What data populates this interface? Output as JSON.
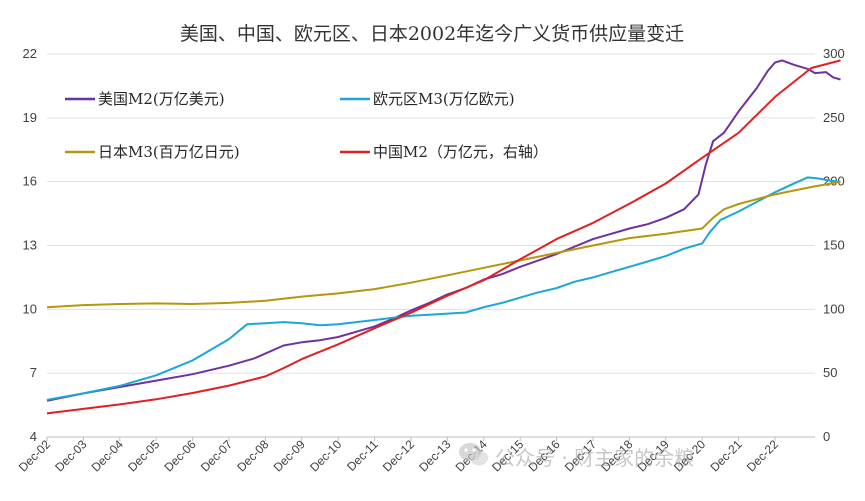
{
  "chart_data": {
    "type": "line",
    "title": "美国、中国、欧元区、日本2002年迄今广义货币供应量变迁",
    "x_labels": [
      "Dec-02",
      "Dec-03",
      "Dec-04",
      "Dec-05",
      "Dec-06",
      "Dec-07",
      "Dec-08",
      "Dec-09",
      "Dec-10",
      "Dec-11",
      "Dec-12",
      "Dec-13",
      "Dec-14",
      "Dec-15",
      "Dec-16",
      "Dec-17",
      "Dec-18",
      "Dec-19",
      "Dec-20",
      "Dec-21",
      "Dec-22"
    ],
    "x_range": [
      2002,
      2023.1
    ],
    "y_left": {
      "range": [
        4,
        22
      ],
      "ticks": [
        "4",
        "7",
        "10",
        "13",
        "16",
        "19",
        "22"
      ]
    },
    "y_right": {
      "range": [
        0,
        300
      ],
      "ticks": [
        "0",
        "50",
        "100",
        "150",
        "200",
        "250",
        "300"
      ]
    },
    "grid": "horizontal",
    "legend": "top-left",
    "series": [
      {
        "name": "美国M2(万亿美元)",
        "color": "#7030a0",
        "axis": "left",
        "points": [
          [
            2002.0,
            5.7
          ],
          [
            2003.0,
            6.05
          ],
          [
            2004.0,
            6.35
          ],
          [
            2005.0,
            6.65
          ],
          [
            2006.0,
            6.95
          ],
          [
            2007.0,
            7.35
          ],
          [
            2007.7,
            7.7
          ],
          [
            2008.5,
            8.3
          ],
          [
            2009.0,
            8.45
          ],
          [
            2009.5,
            8.55
          ],
          [
            2010.0,
            8.7
          ],
          [
            2010.5,
            8.95
          ],
          [
            2011.0,
            9.2
          ],
          [
            2011.5,
            9.55
          ],
          [
            2012.0,
            9.95
          ],
          [
            2012.5,
            10.3
          ],
          [
            2013.0,
            10.7
          ],
          [
            2013.5,
            11.0
          ],
          [
            2014.0,
            11.4
          ],
          [
            2014.5,
            11.65
          ],
          [
            2015.0,
            12.0
          ],
          [
            2015.5,
            12.3
          ],
          [
            2016.0,
            12.6
          ],
          [
            2016.5,
            12.95
          ],
          [
            2017.0,
            13.3
          ],
          [
            2017.5,
            13.55
          ],
          [
            2018.0,
            13.8
          ],
          [
            2018.5,
            14.0
          ],
          [
            2019.0,
            14.3
          ],
          [
            2019.5,
            14.7
          ],
          [
            2019.9,
            15.4
          ],
          [
            2020.1,
            16.8
          ],
          [
            2020.3,
            17.9
          ],
          [
            2020.6,
            18.3
          ],
          [
            2021.0,
            19.3
          ],
          [
            2021.5,
            20.4
          ],
          [
            2021.8,
            21.2
          ],
          [
            2022.0,
            21.6
          ],
          [
            2022.2,
            21.7
          ],
          [
            2022.5,
            21.5
          ],
          [
            2022.9,
            21.3
          ],
          [
            2023.1,
            21.1
          ],
          [
            2023.4,
            21.15
          ],
          [
            2023.6,
            20.9
          ],
          [
            2023.8,
            20.8
          ]
        ]
      },
      {
        "name": "欧元区M3(万亿欧元)",
        "color": "#1aa7d6",
        "axis": "left",
        "points": [
          [
            2002.0,
            5.75
          ],
          [
            2003.0,
            6.05
          ],
          [
            2004.0,
            6.4
          ],
          [
            2005.0,
            6.9
          ],
          [
            2006.0,
            7.6
          ],
          [
            2007.0,
            8.6
          ],
          [
            2007.5,
            9.3
          ],
          [
            2008.0,
            9.35
          ],
          [
            2008.5,
            9.4
          ],
          [
            2009.0,
            9.35
          ],
          [
            2009.5,
            9.25
          ],
          [
            2010.0,
            9.3
          ],
          [
            2010.5,
            9.4
          ],
          [
            2011.0,
            9.5
          ],
          [
            2011.5,
            9.6
          ],
          [
            2012.0,
            9.7
          ],
          [
            2012.5,
            9.75
          ],
          [
            2013.0,
            9.8
          ],
          [
            2013.5,
            9.85
          ],
          [
            2014.0,
            10.1
          ],
          [
            2014.5,
            10.3
          ],
          [
            2015.0,
            10.55
          ],
          [
            2015.5,
            10.8
          ],
          [
            2016.0,
            11.0
          ],
          [
            2016.5,
            11.3
          ],
          [
            2017.0,
            11.5
          ],
          [
            2017.5,
            11.75
          ],
          [
            2018.0,
            12.0
          ],
          [
            2018.5,
            12.25
          ],
          [
            2019.0,
            12.5
          ],
          [
            2019.5,
            12.85
          ],
          [
            2020.0,
            13.1
          ],
          [
            2020.2,
            13.6
          ],
          [
            2020.5,
            14.2
          ],
          [
            2021.0,
            14.6
          ],
          [
            2021.5,
            15.05
          ],
          [
            2022.0,
            15.5
          ],
          [
            2022.5,
            15.9
          ],
          [
            2022.9,
            16.2
          ],
          [
            2023.2,
            16.15
          ],
          [
            2023.5,
            16.05
          ],
          [
            2023.8,
            16.0
          ]
        ]
      },
      {
        "name": "日本M3(百万亿日元)",
        "color": "#b8960c",
        "axis": "left",
        "points": [
          [
            2002.0,
            10.1
          ],
          [
            2003.0,
            10.2
          ],
          [
            2004.0,
            10.25
          ],
          [
            2005.0,
            10.28
          ],
          [
            2006.0,
            10.25
          ],
          [
            2007.0,
            10.3
          ],
          [
            2008.0,
            10.4
          ],
          [
            2009.0,
            10.6
          ],
          [
            2010.0,
            10.75
          ],
          [
            2011.0,
            10.95
          ],
          [
            2012.0,
            11.25
          ],
          [
            2013.0,
            11.6
          ],
          [
            2014.0,
            11.95
          ],
          [
            2015.0,
            12.3
          ],
          [
            2016.0,
            12.65
          ],
          [
            2017.0,
            13.0
          ],
          [
            2018.0,
            13.35
          ],
          [
            2019.0,
            13.55
          ],
          [
            2020.0,
            13.8
          ],
          [
            2020.3,
            14.3
          ],
          [
            2020.6,
            14.7
          ],
          [
            2021.0,
            14.95
          ],
          [
            2022.0,
            15.4
          ],
          [
            2023.0,
            15.75
          ],
          [
            2023.8,
            16.0
          ]
        ]
      },
      {
        "name": "中国M2（万亿元，右轴）",
        "color": "#e02020",
        "axis": "right",
        "points": [
          [
            2002.0,
            18.5
          ],
          [
            2003.0,
            22
          ],
          [
            2004.0,
            25.5
          ],
          [
            2005.0,
            29.5
          ],
          [
            2006.0,
            34.5
          ],
          [
            2007.0,
            40.3
          ],
          [
            2008.0,
            47.5
          ],
          [
            2008.5,
            54
          ],
          [
            2009.0,
            61
          ],
          [
            2010.0,
            72.6
          ],
          [
            2011.0,
            85.2
          ],
          [
            2012.0,
            97.4
          ],
          [
            2013.0,
            110.7
          ],
          [
            2014.0,
            122.8
          ],
          [
            2015.0,
            139.2
          ],
          [
            2016.0,
            155
          ],
          [
            2017.0,
            167.7
          ],
          [
            2018.0,
            182.7
          ],
          [
            2019.0,
            198.6
          ],
          [
            2020.0,
            218.7
          ],
          [
            2021.0,
            238.3
          ],
          [
            2022.0,
            266.4
          ],
          [
            2023.0,
            289
          ],
          [
            2023.8,
            295
          ]
        ]
      }
    ]
  },
  "watermark": {
    "icon": "wechat-icon",
    "text": "公众号 · 财主家的余粮"
  }
}
